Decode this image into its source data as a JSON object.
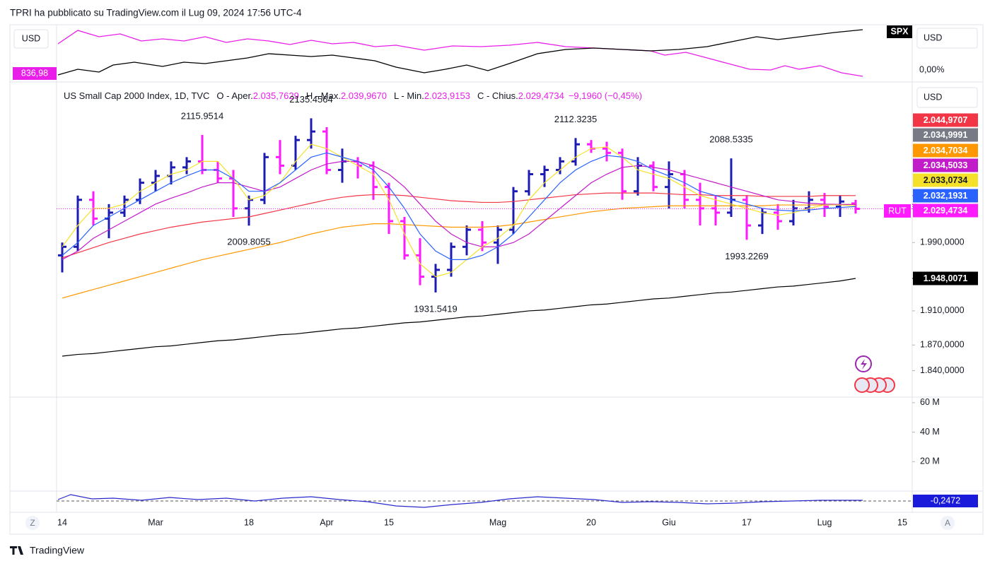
{
  "ui": {
    "header": "TPRI ha pubblicato su TradingView.com il Lug 09, 2024 17:56 UTC-4",
    "currency": "USD",
    "compare_symbol": "SPX",
    "compare_left_label": "836,98",
    "compare_right_label": "0,00%",
    "symbol": "RUT",
    "oscillator_label": "-0,2472",
    "left_button": "Z",
    "right_button": "A",
    "brand": "TradingView"
  },
  "chart_data": [
    {
      "type": "ohlc",
      "title": "US Small Cap 2000 Index, 1D, TVC",
      "legend": [
        {
          "label": "O - Aper.",
          "value_label": "2.035,7629"
        },
        {
          "label": "H - Max.",
          "value_label": "2.039,9670"
        },
        {
          "label": "L - Min.",
          "value_label": "2.023,9153"
        },
        {
          "label": "C - Chius.",
          "value_label": "2.029,4734"
        }
      ],
      "change": "−9,1960 (−0,45%)",
      "categories": [
        "14",
        null,
        null,
        null,
        null,
        null,
        "Mar",
        null,
        null,
        null,
        null,
        null,
        "18",
        null,
        null,
        null,
        null,
        "Apr",
        null,
        null,
        null,
        "15",
        null,
        null,
        null,
        null,
        null,
        null,
        "Mag",
        null,
        null,
        null,
        null,
        null,
        "20",
        null,
        null,
        null,
        null,
        "Giu",
        null,
        null,
        null,
        null,
        "17",
        null,
        null,
        null,
        null,
        "Lug",
        null,
        null,
        null,
        null,
        "15"
      ],
      "open": [
        1975,
        1985,
        2040,
        2018,
        2025,
        2040,
        2060,
        2068,
        2078,
        2085,
        2075,
        2065,
        2030,
        2040,
        2090,
        2080,
        2110,
        2120,
        2075,
        2085,
        2080,
        2055,
        2015,
        1975,
        1950,
        1958,
        1985,
        2005,
        1990,
        2005,
        2050,
        2070,
        2075,
        2085,
        2105,
        2100,
        2095,
        2050,
        2080,
        2055,
        2070,
        2040,
        2030,
        2025,
        2040,
        2010,
        2025,
        2015,
        2030,
        2040,
        2032,
        2035.7629,
        null,
        null,
        null
      ],
      "high": [
        1990,
        2045,
        2050,
        2035,
        2045,
        2065,
        2075,
        2085,
        2090,
        2115.9514,
        2085,
        2075,
        2045,
        2095,
        2110,
        2115,
        2135.4564,
        2125,
        2100,
        2090,
        2085,
        2060,
        2020,
        1995,
        1965,
        1990,
        2010,
        2015,
        2010,
        2055,
        2075,
        2080,
        2090,
        2112.3235,
        2110,
        2108,
        2100,
        2090,
        2085,
        2085,
        2075,
        2060,
        2045,
        2088.5335,
        2045,
        2030,
        2035,
        2040,
        2050,
        2048,
        2045,
        2039.967,
        null,
        null,
        null
      ],
      "low": [
        1955,
        1980,
        2010,
        1995,
        2020,
        2035,
        2050,
        2058,
        2070,
        2070,
        2060,
        2020,
        2009.8055,
        2035,
        2070,
        2075,
        2100,
        2070,
        2060,
        2065,
        2040,
        2000,
        1970,
        1940,
        1931.5419,
        1950,
        1975,
        1980,
        1965,
        2000,
        2045,
        2055,
        2070,
        2080,
        2095,
        2085,
        2040,
        2045,
        2050,
        2030,
        2030,
        2010,
        2010,
        2020,
        1993.2269,
        2000,
        2005,
        2010,
        2025,
        2020,
        2020,
        2023.9153,
        null,
        null,
        null
      ],
      "close": [
        1985,
        2040,
        2018,
        2025,
        2040,
        2060,
        2068,
        2078,
        2085,
        2075,
        2065,
        2030,
        2040,
        2090,
        2080,
        2110,
        2120,
        2075,
        2085,
        2080,
        2055,
        2015,
        1975,
        1950,
        1958,
        1985,
        2005,
        1990,
        2005,
        2050,
        2070,
        2075,
        2085,
        2105,
        2100,
        2095,
        2050,
        2080,
        2055,
        2070,
        2040,
        2030,
        2025,
        2040,
        2010,
        2025,
        2015,
        2030,
        2040,
        2032,
        2038,
        2029.4734,
        null,
        null,
        null
      ],
      "close_last_label": "2.029,4734",
      "up_color": "#1c1cb0",
      "down_color": "#ff1aff",
      "series": [
        {
          "color": "#f23645",
          "last_label": "2.044,9707",
          "values": [
            1972,
            1978,
            1984,
            1990,
            1995,
            2000,
            2004,
            2008,
            2011,
            2014,
            2016,
            2018,
            2020,
            2024,
            2028,
            2032,
            2036,
            2040,
            2043,
            2045,
            2046,
            2046,
            2045,
            2043,
            2041,
            2039,
            2038,
            2037,
            2037,
            2038,
            2040,
            2042,
            2044,
            2046,
            2047,
            2048,
            2048,
            2048,
            2048,
            2047,
            2046,
            2046,
            2045,
            2045,
            2045,
            2044,
            2044,
            2044,
            2044,
            2045,
            2045,
            2044.9707,
            null,
            null,
            null
          ]
        },
        {
          "color": "#ff9800",
          "last_label": "2.034,7034",
          "values": [
            1925,
            1930,
            1935,
            1940,
            1945,
            1950,
            1955,
            1960,
            1965,
            1970,
            1974,
            1978,
            1982,
            1986,
            1990,
            1995,
            2000,
            2004,
            2008,
            2010,
            2012,
            2012,
            2011,
            2010,
            2009,
            2008,
            2008,
            2008,
            2009,
            2011,
            2014,
            2017,
            2020,
            2023,
            2026,
            2028,
            2030,
            2031,
            2032,
            2033,
            2033,
            2033,
            2033,
            2033,
            2033,
            2033,
            2034,
            2034,
            2034,
            2034,
            2034.5,
            2034.7034,
            null,
            null,
            null
          ]
        },
        {
          "color": "#c21bc9",
          "last_label": "2.034,5033",
          "values": [
            1970,
            1980,
            1995,
            2005,
            2015,
            2025,
            2035,
            2042,
            2048,
            2055,
            2060,
            2060,
            2055,
            2050,
            2055,
            2065,
            2075,
            2082,
            2085,
            2085,
            2080,
            2070,
            2055,
            2035,
            2015,
            2000,
            1990,
            1985,
            1985,
            1990,
            2000,
            2015,
            2030,
            2045,
            2060,
            2070,
            2078,
            2080,
            2078,
            2075,
            2070,
            2065,
            2060,
            2055,
            2050,
            2045,
            2040,
            2038,
            2036,
            2035,
            2034.7,
            2034.5033,
            null,
            null,
            null
          ]
        },
        {
          "color": "#f5e12a",
          "last_label": "2.033,0734",
          "values": [
            1985,
            2010,
            2030,
            2030,
            2035,
            2050,
            2060,
            2070,
            2075,
            2085,
            2085,
            2065,
            2040,
            2045,
            2060,
            2085,
            2105,
            2100,
            2090,
            2080,
            2070,
            2040,
            2000,
            1965,
            1950,
            1955,
            1970,
            1985,
            1995,
            2010,
            2040,
            2060,
            2075,
            2090,
            2100,
            2102,
            2090,
            2075,
            2070,
            2065,
            2055,
            2045,
            2040,
            2035,
            2030,
            2025,
            2022,
            2025,
            2030,
            2034,
            2034,
            2033.0734,
            null,
            null,
            null
          ]
        },
        {
          "color": "#2962ff",
          "last_label": "2.032,1931",
          "values": [
            1975,
            1990,
            2010,
            2020,
            2030,
            2040,
            2050,
            2060,
            2068,
            2075,
            2075,
            2065,
            2050,
            2050,
            2060,
            2075,
            2090,
            2095,
            2090,
            2085,
            2075,
            2055,
            2030,
            2000,
            1980,
            1970,
            1970,
            1975,
            1985,
            2000,
            2020,
            2040,
            2060,
            2075,
            2085,
            2092,
            2090,
            2085,
            2075,
            2068,
            2060,
            2050,
            2045,
            2040,
            2035,
            2030,
            2028,
            2027,
            2028,
            2030,
            2031,
            2032.1931,
            null,
            null,
            null
          ]
        },
        {
          "color": "#000000",
          "last_label": "1.948,0071",
          "values": [
            1857,
            1859,
            1860,
            1862,
            1864,
            1866,
            1868,
            1869,
            1871,
            1873,
            1875,
            1876,
            1878,
            1880,
            1882,
            1883,
            1885,
            1887,
            1889,
            1890,
            1892,
            1894,
            1896,
            1897,
            1899,
            1901,
            1903,
            1904,
            1906,
            1908,
            1910,
            1911,
            1913,
            1915,
            1917,
            1918,
            1920,
            1922,
            1924,
            1925,
            1927,
            1929,
            1931,
            1932,
            1934,
            1936,
            1938,
            1939,
            1941,
            1943,
            1945,
            1948.0071,
            null,
            null,
            null
          ]
        }
      ],
      "extra_price_labels": [
        {
          "value": 2034.9991,
          "label": "2.034,9991",
          "color": "#787b86"
        }
      ],
      "ylim": [
        1809,
        2178
      ],
      "yticks": [
        {
          "value": 1990,
          "label": "1.990,0000"
        },
        {
          "value": 1910,
          "label": "1.910,0000"
        },
        {
          "value": 1870,
          "label": "1.870,0000"
        },
        {
          "value": 1840,
          "label": "1.840,0000"
        }
      ]
    },
    {
      "type": "bar",
      "ylim": [
        0,
        63300000
      ],
      "yticks": [
        {
          "value": 60000000,
          "label": "60 M"
        },
        {
          "value": 40000000,
          "label": "40 M"
        },
        {
          "value": 20000000,
          "label": "20 M"
        }
      ]
    }
  ]
}
